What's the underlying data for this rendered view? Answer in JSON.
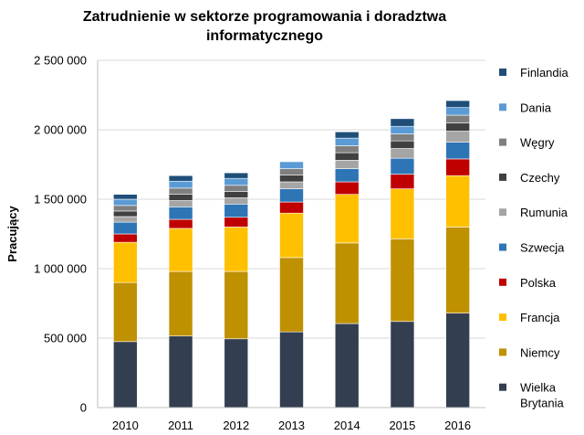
{
  "chart_data": {
    "type": "bar",
    "stacked": true,
    "title_lines": [
      "Zatrudnienie w sektorze programowania i doradztwa",
      "informatycznego"
    ],
    "xlabel": "",
    "ylabel": "Pracujący",
    "ylim": [
      0,
      2500000
    ],
    "yticks": [
      0,
      500000,
      1000000,
      1500000,
      2000000,
      2500000
    ],
    "ytick_labels": [
      "0",
      "500 000",
      "1 000 000",
      "1 500 000",
      "2 000 000",
      "2 500 000"
    ],
    "grid": true,
    "legend_position": "right",
    "categories": [
      "2010",
      "2011",
      "2012",
      "2013",
      "2014",
      "2015",
      "2016"
    ],
    "series": [
      {
        "name": "Wielka Brytania",
        "label_lines": [
          "Wielka",
          "Brytania"
        ],
        "color": "#333f50",
        "values": [
          475000,
          515000,
          495000,
          545000,
          605000,
          620000,
          680000
        ]
      },
      {
        "name": "Niemcy",
        "label_lines": [
          "Niemcy"
        ],
        "color": "#bf9000",
        "values": [
          425000,
          465000,
          485000,
          535000,
          580000,
          595000,
          620000
        ]
      },
      {
        "name": "Francja",
        "label_lines": [
          "Francja"
        ],
        "color": "#ffc000",
        "values": [
          290000,
          310000,
          320000,
          320000,
          350000,
          360000,
          370000
        ]
      },
      {
        "name": "Polska",
        "label_lines": [
          "Polska"
        ],
        "color": "#c00000",
        "values": [
          60000,
          65000,
          70000,
          80000,
          90000,
          105000,
          120000
        ]
      },
      {
        "name": "Szwecja",
        "label_lines": [
          "Szwecja"
        ],
        "color": "#2e75b6",
        "values": [
          85000,
          90000,
          95000,
          95000,
          95000,
          115000,
          120000
        ]
      },
      {
        "name": "Rumunia",
        "label_lines": [
          "Rumunia"
        ],
        "color": "#a5a5a5",
        "values": [
          40000,
          45000,
          45000,
          50000,
          60000,
          70000,
          80000
        ]
      },
      {
        "name": "Czechy",
        "label_lines": [
          "Czechy"
        ],
        "color": "#404040",
        "values": [
          40000,
          45000,
          45000,
          50000,
          55000,
          55000,
          60000
        ]
      },
      {
        "name": "Węgry",
        "label_lines": [
          "Węgry"
        ],
        "color": "#7f7f7f",
        "values": [
          40000,
          45000,
          45000,
          45000,
          50000,
          50000,
          55000
        ]
      },
      {
        "name": "Dania",
        "label_lines": [
          "Dania"
        ],
        "color": "#5b9bd5",
        "values": [
          45000,
          50000,
          50000,
          50000,
          55000,
          55000,
          55000
        ]
      },
      {
        "name": "Finlandia",
        "label_lines": [
          "Finlandia"
        ],
        "color": "#1f4e79",
        "values": [
          35000,
          40000,
          40000,
          0,
          45000,
          55000,
          50000
        ]
      }
    ]
  }
}
